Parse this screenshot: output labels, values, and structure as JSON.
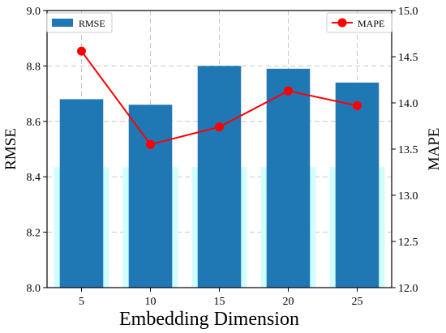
{
  "chart_data": {
    "type": "bar",
    "categories": [
      "5",
      "10",
      "15",
      "20",
      "25"
    ],
    "series": [
      {
        "name": "RMSE",
        "type": "bar",
        "axis": "left",
        "color": "#1f77b4",
        "values": [
          8.68,
          8.66,
          8.8,
          8.79,
          8.74
        ]
      },
      {
        "name": "MAPE",
        "type": "line",
        "axis": "right",
        "color": "#ff0000",
        "values": [
          14.56,
          13.55,
          13.74,
          14.13,
          13.97
        ]
      }
    ],
    "xlabel": "Embedding Dimension",
    "ylabel_left": "RMSE",
    "ylabel_right": "MAPE",
    "ylim_left": [
      8.0,
      9.0
    ],
    "ylim_right": [
      12.0,
      15.0
    ],
    "yticks_left": [
      "8.0",
      "8.2",
      "8.4",
      "8.6",
      "8.8",
      "9.0"
    ],
    "yticks_right": [
      "12.0",
      "12.5",
      "13.0",
      "13.5",
      "14.0",
      "14.5",
      "15.0"
    ],
    "grid": true,
    "legend_left": "top-left",
    "legend_right": "top-right",
    "background_band_color": "#ccffff"
  }
}
